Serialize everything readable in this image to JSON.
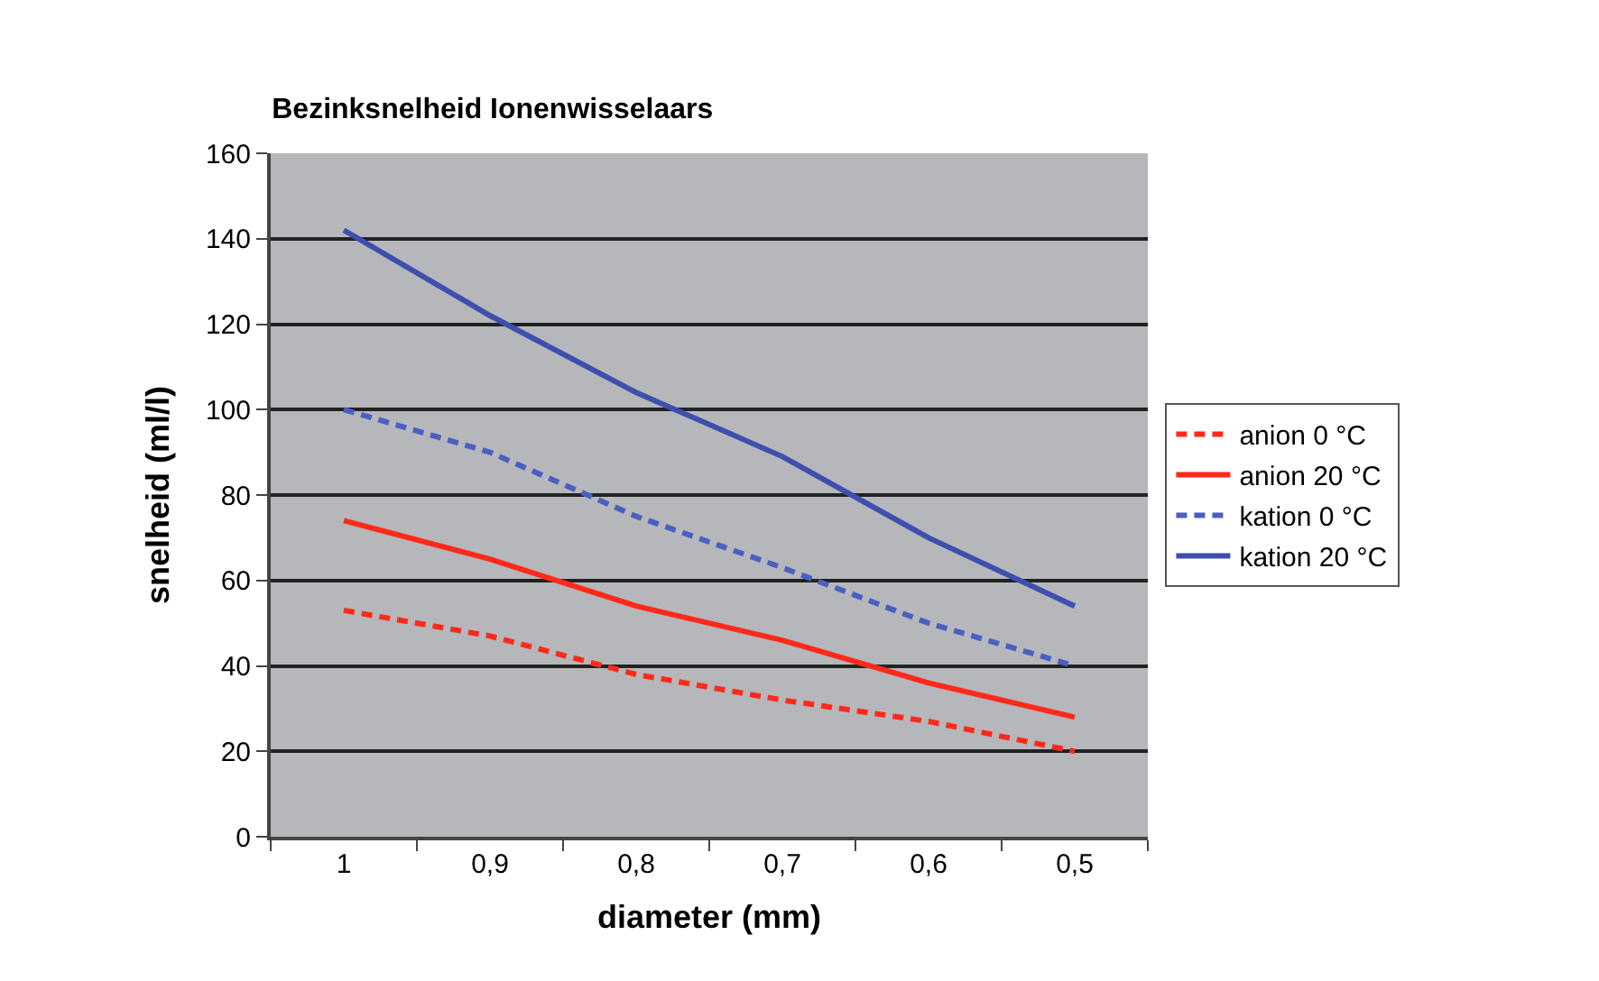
{
  "chart_data": {
    "type": "line",
    "title": "Bezinksnelheid Ionenwisselaars",
    "xlabel": "diameter (mm)",
    "ylabel": "snelheid (ml/l)",
    "categories": [
      "1",
      "0,9",
      "0,8",
      "0,7",
      "0,6",
      "0,5"
    ],
    "ylim": [
      0,
      160
    ],
    "yticks": [
      0,
      20,
      40,
      60,
      80,
      100,
      120,
      140,
      160
    ],
    "grid": "y",
    "legend": "right",
    "marker": "none",
    "series": [
      {
        "name": "anion 0 °C",
        "color": "#ff2a1a",
        "line_style": "dashed",
        "values": [
          53,
          47,
          38,
          32,
          27,
          20
        ]
      },
      {
        "name": "anion 20 °C",
        "color": "#ff2a1a",
        "line_style": "solid",
        "values": [
          74,
          65,
          54,
          46,
          36,
          28
        ]
      },
      {
        "name": "kation 0 °C",
        "color": "#4a5fc1",
        "line_style": "dashed",
        "values": [
          100,
          90,
          75,
          63,
          50,
          40
        ]
      },
      {
        "name": "kation 20 °C",
        "color": "#3f4fae",
        "line_style": "solid",
        "values": [
          142,
          122,
          104,
          89,
          70,
          54
        ]
      }
    ]
  }
}
